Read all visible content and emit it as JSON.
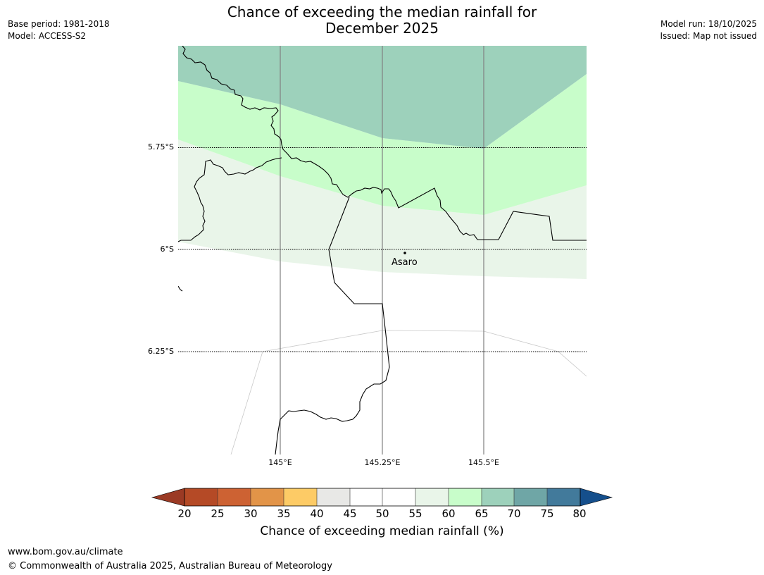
{
  "title_line1": "Chance of exceeding the median rainfall for",
  "title_line2": "December 2025",
  "meta_left": {
    "base_period": "Base period: 1981-2018",
    "model": "Model: ACCESS-S2"
  },
  "meta_right": {
    "model_run": "Model run: 18/10/2025",
    "issued": "Issued: Map not issued"
  },
  "map": {
    "latitude_labels": [
      "5.75°S",
      "6°S",
      "6.25°S"
    ],
    "longitude_labels": [
      "145°E",
      "145.25°E",
      "145.5°E"
    ],
    "place": "Asaro"
  },
  "colorbar": {
    "ticks": [
      "20",
      "25",
      "30",
      "35",
      "40",
      "45",
      "50",
      "55",
      "60",
      "65",
      "70",
      "75",
      "80"
    ],
    "colors": {
      "below_20": "#9b3a24",
      "20_25": "#b54a26",
      "25_30": "#cd6233",
      "30_35": "#e29448",
      "35_40": "#fdcb66",
      "40_45": "#e8e8e6",
      "45_50": "#ffffff",
      "50_55": "#ffffff",
      "55_60": "#e9f5e9",
      "60_65": "#c8fdca",
      "65_70": "#9dd1bb",
      "70_75": "#6fa6a6",
      "75_80": "#427a9b",
      "above_80": "#154f8c"
    },
    "label": "Chance of exceeding median rainfall (%)"
  },
  "footer": {
    "url": "www.bom.gov.au/climate",
    "copyright": "© Commonwealth of Australia 2025, Australian Bureau of Meteorology"
  }
}
